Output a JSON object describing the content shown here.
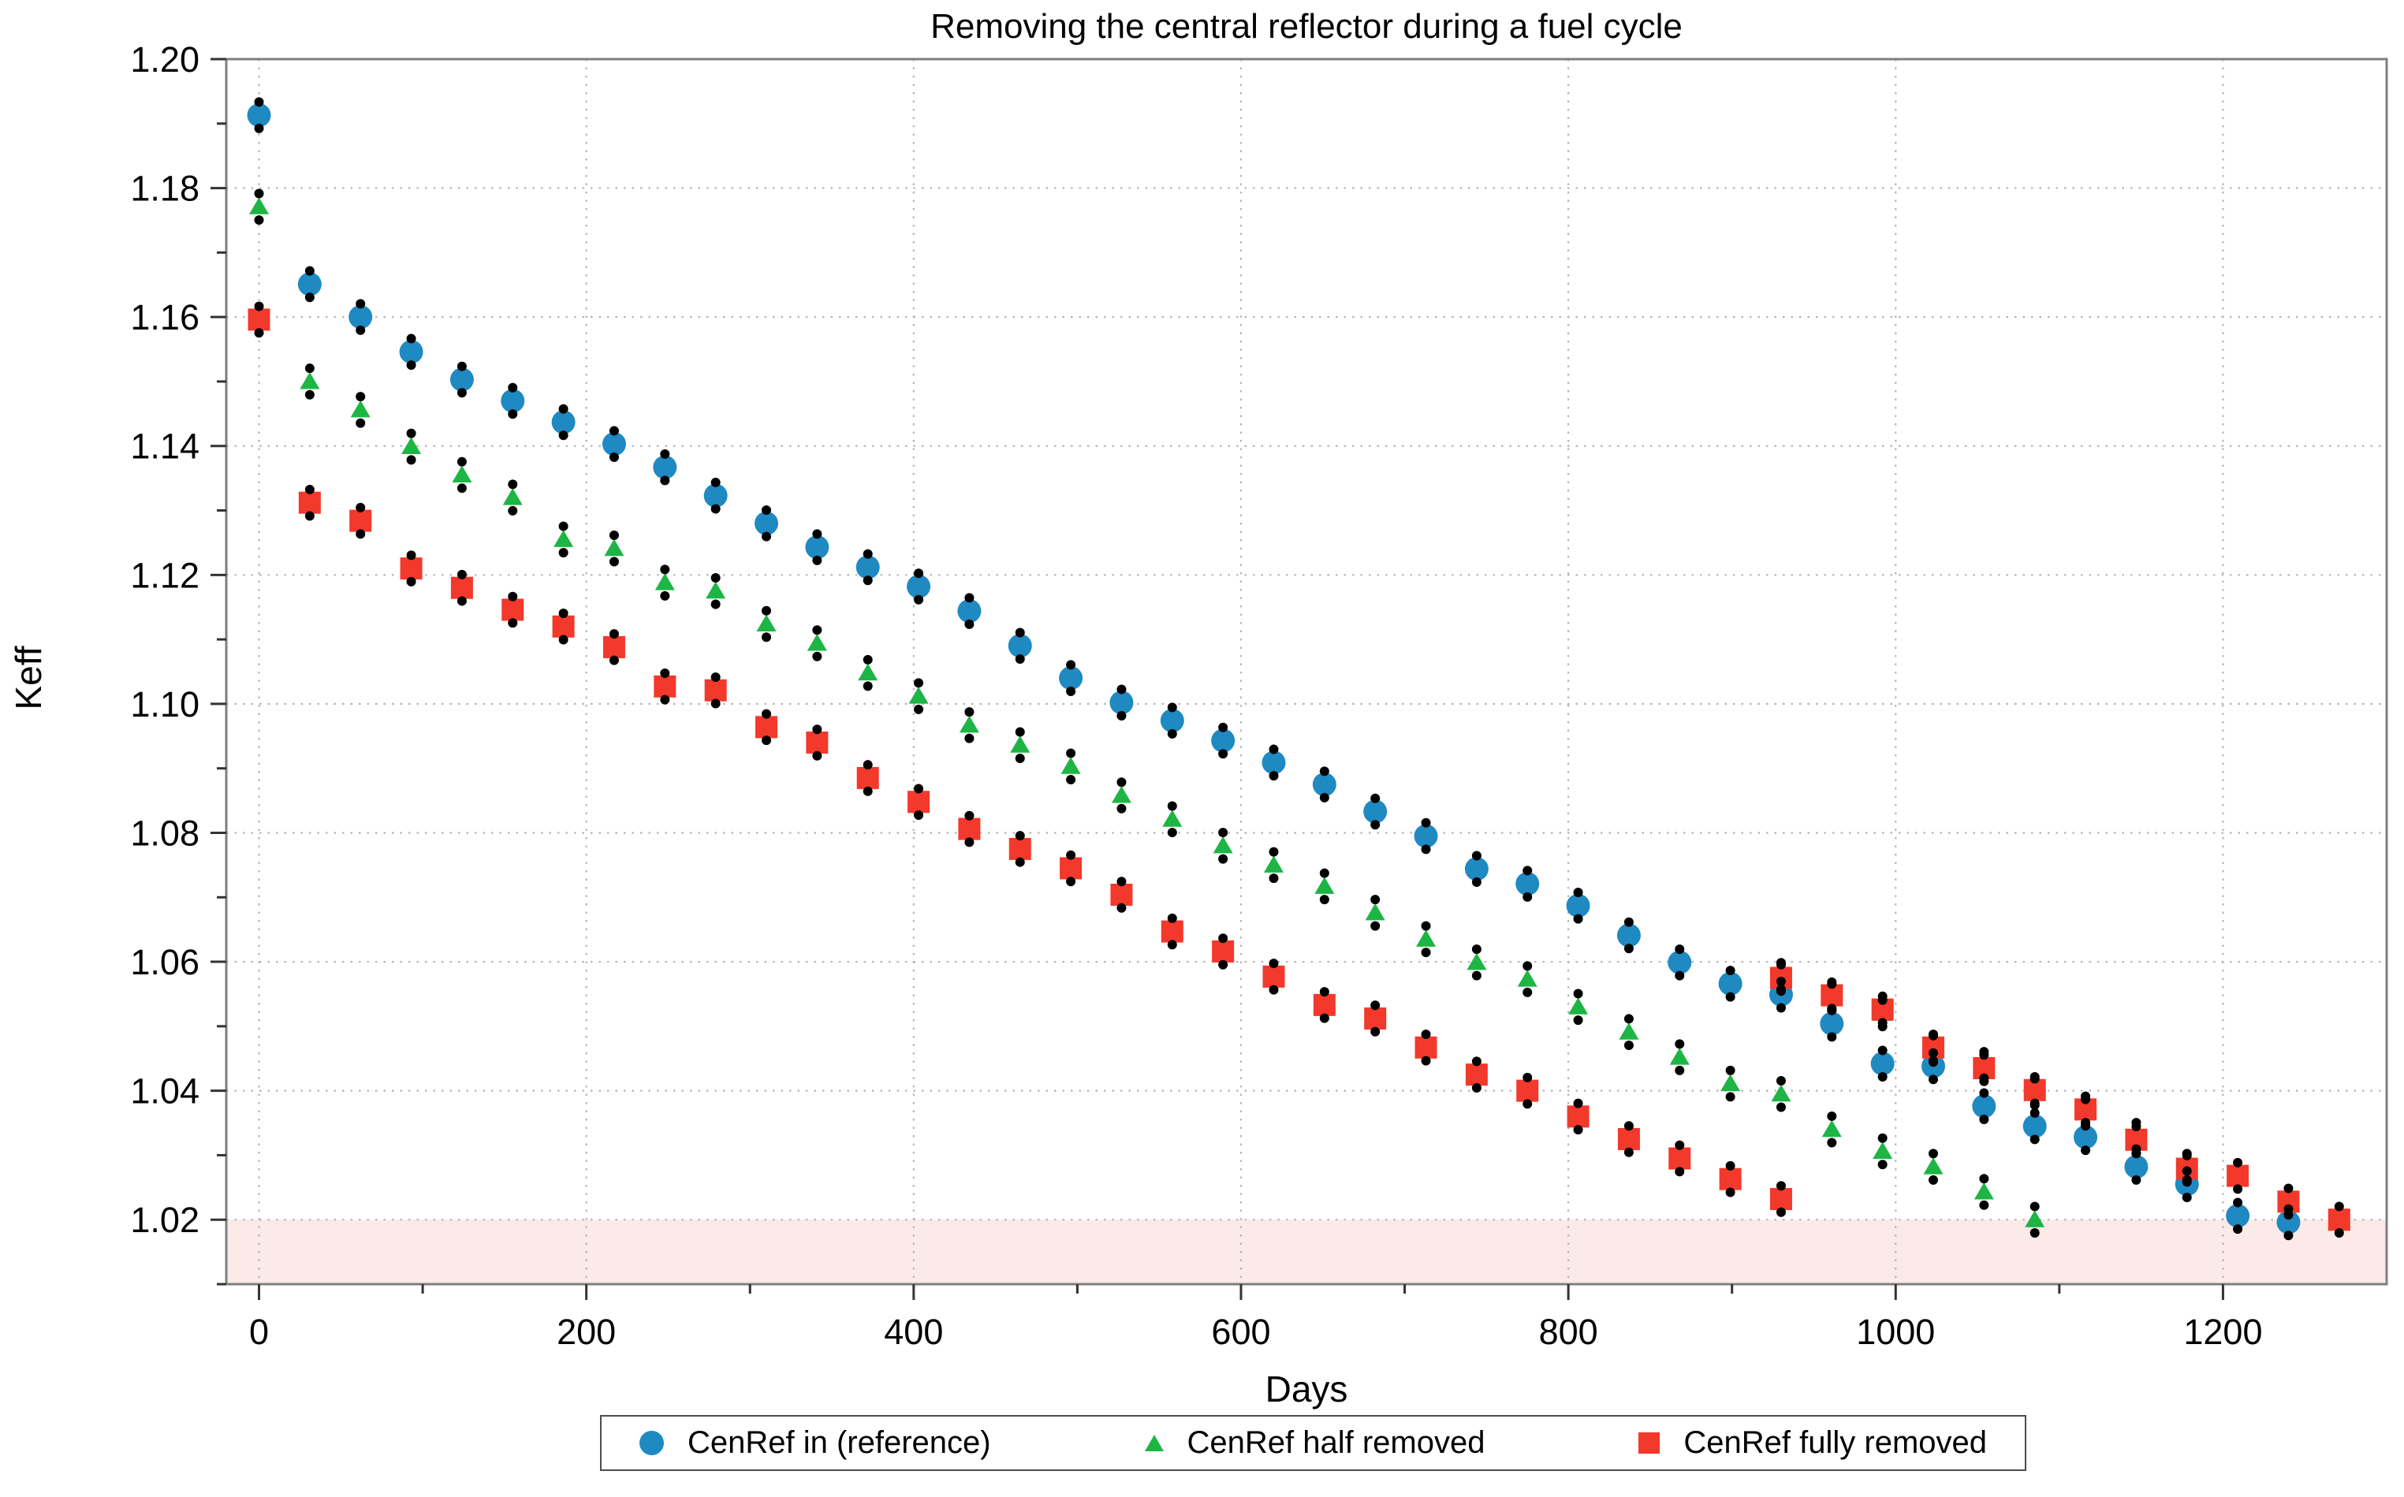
{
  "title": "Removing the central reflector during a fuel cycle",
  "axes": {
    "xlabel": "Days",
    "ylabel": "Keff",
    "x_tick_labels": [
      "0",
      "200",
      "400",
      "600",
      "800",
      "1000",
      "1200"
    ],
    "y_tick_labels": [
      "1.02",
      "1.04",
      "1.06",
      "1.08",
      "1.10",
      "1.12",
      "1.14",
      "1.16",
      "1.18",
      "1.20"
    ]
  },
  "legend": {
    "items": [
      {
        "label": "CenRef in (reference)",
        "marker": "circle-icon",
        "color": "#1f89c2"
      },
      {
        "label": "CenRef half removed",
        "marker": "triangle-icon",
        "color": "#1db544"
      },
      {
        "label": "CenRef fully removed",
        "marker": "square-icon",
        "color": "#f3392b"
      }
    ]
  },
  "colors": {
    "blue_series": "#1f89c2",
    "green_series": "#1db544",
    "red_series": "#f3392b",
    "error_dot": "#000000",
    "grid": "#b5b5b5",
    "spine": "#7f7f7f",
    "tick": "#333333",
    "shaded_band": "#fbeae8",
    "background": "#ffffff"
  },
  "chart_data": {
    "type": "scatter",
    "title": "Removing the central reflector during a fuel cycle",
    "xlabel": "Days",
    "ylabel": "Keff",
    "xlim": [
      -20,
      1300
    ],
    "ylim": [
      1.01,
      1.2
    ],
    "x_ticks": [
      0,
      200,
      400,
      600,
      800,
      1000,
      1200
    ],
    "x_minor_ticks": [
      100,
      300,
      500,
      700,
      900,
      1100
    ],
    "y_ticks": [
      1.02,
      1.04,
      1.06,
      1.08,
      1.1,
      1.12,
      1.14,
      1.16,
      1.18,
      1.2
    ],
    "y_minor_ticks": [
      1.01,
      1.03,
      1.05,
      1.07,
      1.09,
      1.11,
      1.13,
      1.15,
      1.17,
      1.19
    ],
    "grid": "dotted major gridlines on both axes",
    "legend_position": "below axes, centered",
    "shaded_region": {
      "y_max": 1.02,
      "note": "light pink band across plot below Keff = 1.02",
      "color": "#fbeae8"
    },
    "error_bars": {
      "style": "black dots above and below each marker",
      "offset_keff": 0.00205
    },
    "series": [
      {
        "name": "CenRef in (reference)",
        "marker": "circle",
        "color": "#1f89c2",
        "branches": [
          [
            [
              0,
              1.1913
            ],
            [
              31,
              1.1651
            ],
            [
              62,
              1.16
            ],
            [
              93,
              1.1546
            ],
            [
              124,
              1.1503
            ],
            [
              155,
              1.147
            ],
            [
              186,
              1.1437
            ],
            [
              217,
              1.1403
            ],
            [
              248,
              1.1367
            ],
            [
              279,
              1.1323
            ],
            [
              310,
              1.128
            ],
            [
              341,
              1.1243
            ],
            [
              372,
              1.1212
            ],
            [
              403,
              1.1182
            ],
            [
              434,
              1.1144
            ],
            [
              465,
              1.109
            ],
            [
              496,
              1.104
            ],
            [
              527,
              1.1002
            ],
            [
              558,
              1.0974
            ],
            [
              589,
              1.0943
            ],
            [
              620,
              1.0909
            ],
            [
              651,
              1.0875
            ],
            [
              682,
              1.0833
            ],
            [
              713,
              1.0795
            ],
            [
              744,
              1.0744
            ],
            [
              775,
              1.0721
            ],
            [
              806,
              1.0687
            ],
            [
              837,
              1.0641
            ],
            [
              868,
              1.0599
            ],
            [
              899,
              1.0566
            ],
            [
              930,
              1.0549
            ],
            [
              961,
              1.0504
            ],
            [
              992,
              1.0442
            ],
            [
              1023,
              1.0438
            ],
            [
              1054,
              1.0376
            ],
            [
              1085,
              1.0345
            ],
            [
              1116,
              1.0328
            ],
            [
              1147,
              1.0282
            ],
            [
              1178,
              1.0255
            ],
            [
              1209,
              1.0206
            ],
            [
              1240,
              1.0196
            ]
          ]
        ]
      },
      {
        "name": "CenRef half removed",
        "marker": "triangle",
        "color": "#1db544",
        "branches": [
          [
            [
              0,
              1.1771
            ],
            [
              31,
              1.15
            ],
            [
              62,
              1.1456
            ],
            [
              93,
              1.1399
            ],
            [
              124,
              1.1355
            ],
            [
              155,
              1.132
            ],
            [
              186,
              1.1255
            ],
            [
              217,
              1.1241
            ],
            [
              248,
              1.1188
            ],
            [
              279,
              1.1175
            ],
            [
              310,
              1.1124
            ],
            [
              341,
              1.1094
            ],
            [
              372,
              1.1048
            ],
            [
              403,
              1.1012
            ],
            [
              434,
              1.0967
            ],
            [
              465,
              1.0936
            ],
            [
              496,
              1.0903
            ],
            [
              527,
              1.0858
            ],
            [
              558,
              1.0821
            ],
            [
              589,
              1.078
            ],
            [
              620,
              1.075
            ],
            [
              651,
              1.0717
            ],
            [
              682,
              1.0676
            ],
            [
              713,
              1.0635
            ],
            [
              744,
              1.0599
            ],
            [
              775,
              1.0573
            ],
            [
              806,
              1.053
            ],
            [
              837,
              1.0491
            ],
            [
              868,
              1.0452
            ],
            [
              899,
              1.0411
            ],
            [
              930,
              1.0395
            ],
            [
              961,
              1.034
            ],
            [
              992,
              1.0306
            ],
            [
              1023,
              1.0282
            ],
            [
              1054,
              1.0243
            ],
            [
              1085,
              1.02
            ]
          ],
          [
            [
              930,
              1.0578
            ],
            [
              961,
              1.0545
            ],
            [
              992,
              1.052
            ],
            [
              1023,
              1.0465
            ],
            [
              1054,
              1.044
            ],
            [
              1085,
              1.0398
            ],
            [
              1116,
              1.0366
            ],
            [
              1147,
              1.033
            ],
            [
              1178,
              1.0282
            ]
          ]
        ]
      },
      {
        "name": "CenRef fully removed",
        "marker": "square",
        "color": "#f3392b",
        "branches": [
          [
            [
              0,
              1.1596
            ],
            [
              31,
              1.1312
            ],
            [
              62,
              1.1284
            ],
            [
              93,
              1.121
            ],
            [
              124,
              1.118
            ],
            [
              155,
              1.1146
            ],
            [
              186,
              1.112
            ],
            [
              217,
              1.1088
            ],
            [
              248,
              1.1027
            ],
            [
              279,
              1.1021
            ],
            [
              310,
              1.0964
            ],
            [
              341,
              1.094
            ],
            [
              372,
              1.0885
            ],
            [
              403,
              1.0848
            ],
            [
              434,
              1.0806
            ],
            [
              465,
              1.0775
            ],
            [
              496,
              1.0745
            ],
            [
              527,
              1.0704
            ],
            [
              558,
              1.0647
            ],
            [
              589,
              1.0616
            ],
            [
              620,
              1.0577
            ],
            [
              651,
              1.0533
            ],
            [
              682,
              1.0512
            ],
            [
              713,
              1.0467
            ],
            [
              744,
              1.0425
            ],
            [
              775,
              1.04
            ],
            [
              806,
              1.036
            ],
            [
              837,
              1.0325
            ],
            [
              868,
              1.0295
            ],
            [
              899,
              1.0263
            ],
            [
              930,
              1.0232
            ]
          ],
          [
            [
              930,
              1.0575
            ],
            [
              961,
              1.0548
            ],
            [
              992,
              1.0526
            ],
            [
              1023,
              1.0467
            ],
            [
              1054,
              1.0435
            ],
            [
              1085,
              1.0401
            ],
            [
              1116,
              1.0371
            ],
            [
              1147,
              1.0324
            ],
            [
              1178,
              1.0279
            ],
            [
              1209,
              1.0268
            ],
            [
              1240,
              1.0228
            ],
            [
              1271,
              1.02
            ]
          ]
        ]
      }
    ]
  }
}
